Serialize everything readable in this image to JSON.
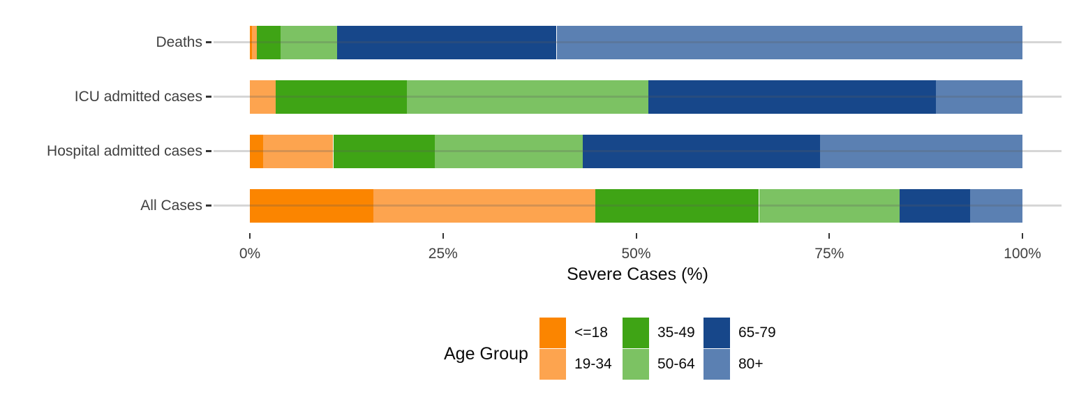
{
  "chart_data": {
    "type": "bar",
    "orientation": "horizontal-stacked",
    "categories": [
      "Deaths",
      "ICU admitted cases",
      "Hospital admitted cases",
      "All Cases"
    ],
    "series": [
      {
        "name": "<=18",
        "color": "#FB8500",
        "values": [
          0.3,
          0.0,
          1.7,
          16.0
        ]
      },
      {
        "name": "19-34",
        "color": "#FDA44F",
        "values": [
          0.6,
          3.3,
          9.1,
          28.7
        ]
      },
      {
        "name": "35-49",
        "color": "#3FA415",
        "values": [
          3.1,
          17.0,
          13.1,
          21.2
        ]
      },
      {
        "name": "50-64",
        "color": "#7CC263",
        "values": [
          7.3,
          31.3,
          19.2,
          18.2
        ]
      },
      {
        "name": "65-79",
        "color": "#17478A",
        "values": [
          28.4,
          37.2,
          30.7,
          9.1
        ]
      },
      {
        "name": "80+",
        "color": "#5B80B2",
        "values": [
          60.3,
          11.2,
          26.2,
          6.8
        ]
      }
    ],
    "xlabel": "Severe Cases (%)",
    "xlim": [
      0,
      100
    ],
    "x_ticks": [
      {
        "label": "0%",
        "value": 0
      },
      {
        "label": "25%",
        "value": 25
      },
      {
        "label": "50%",
        "value": 50
      },
      {
        "label": "75%",
        "value": 75
      },
      {
        "label": "100%",
        "value": 100
      }
    ],
    "legend_title": "Age Group",
    "legend_position": "bottom",
    "grid": "horizontal-category-lines-only",
    "background": "#ffffff"
  }
}
